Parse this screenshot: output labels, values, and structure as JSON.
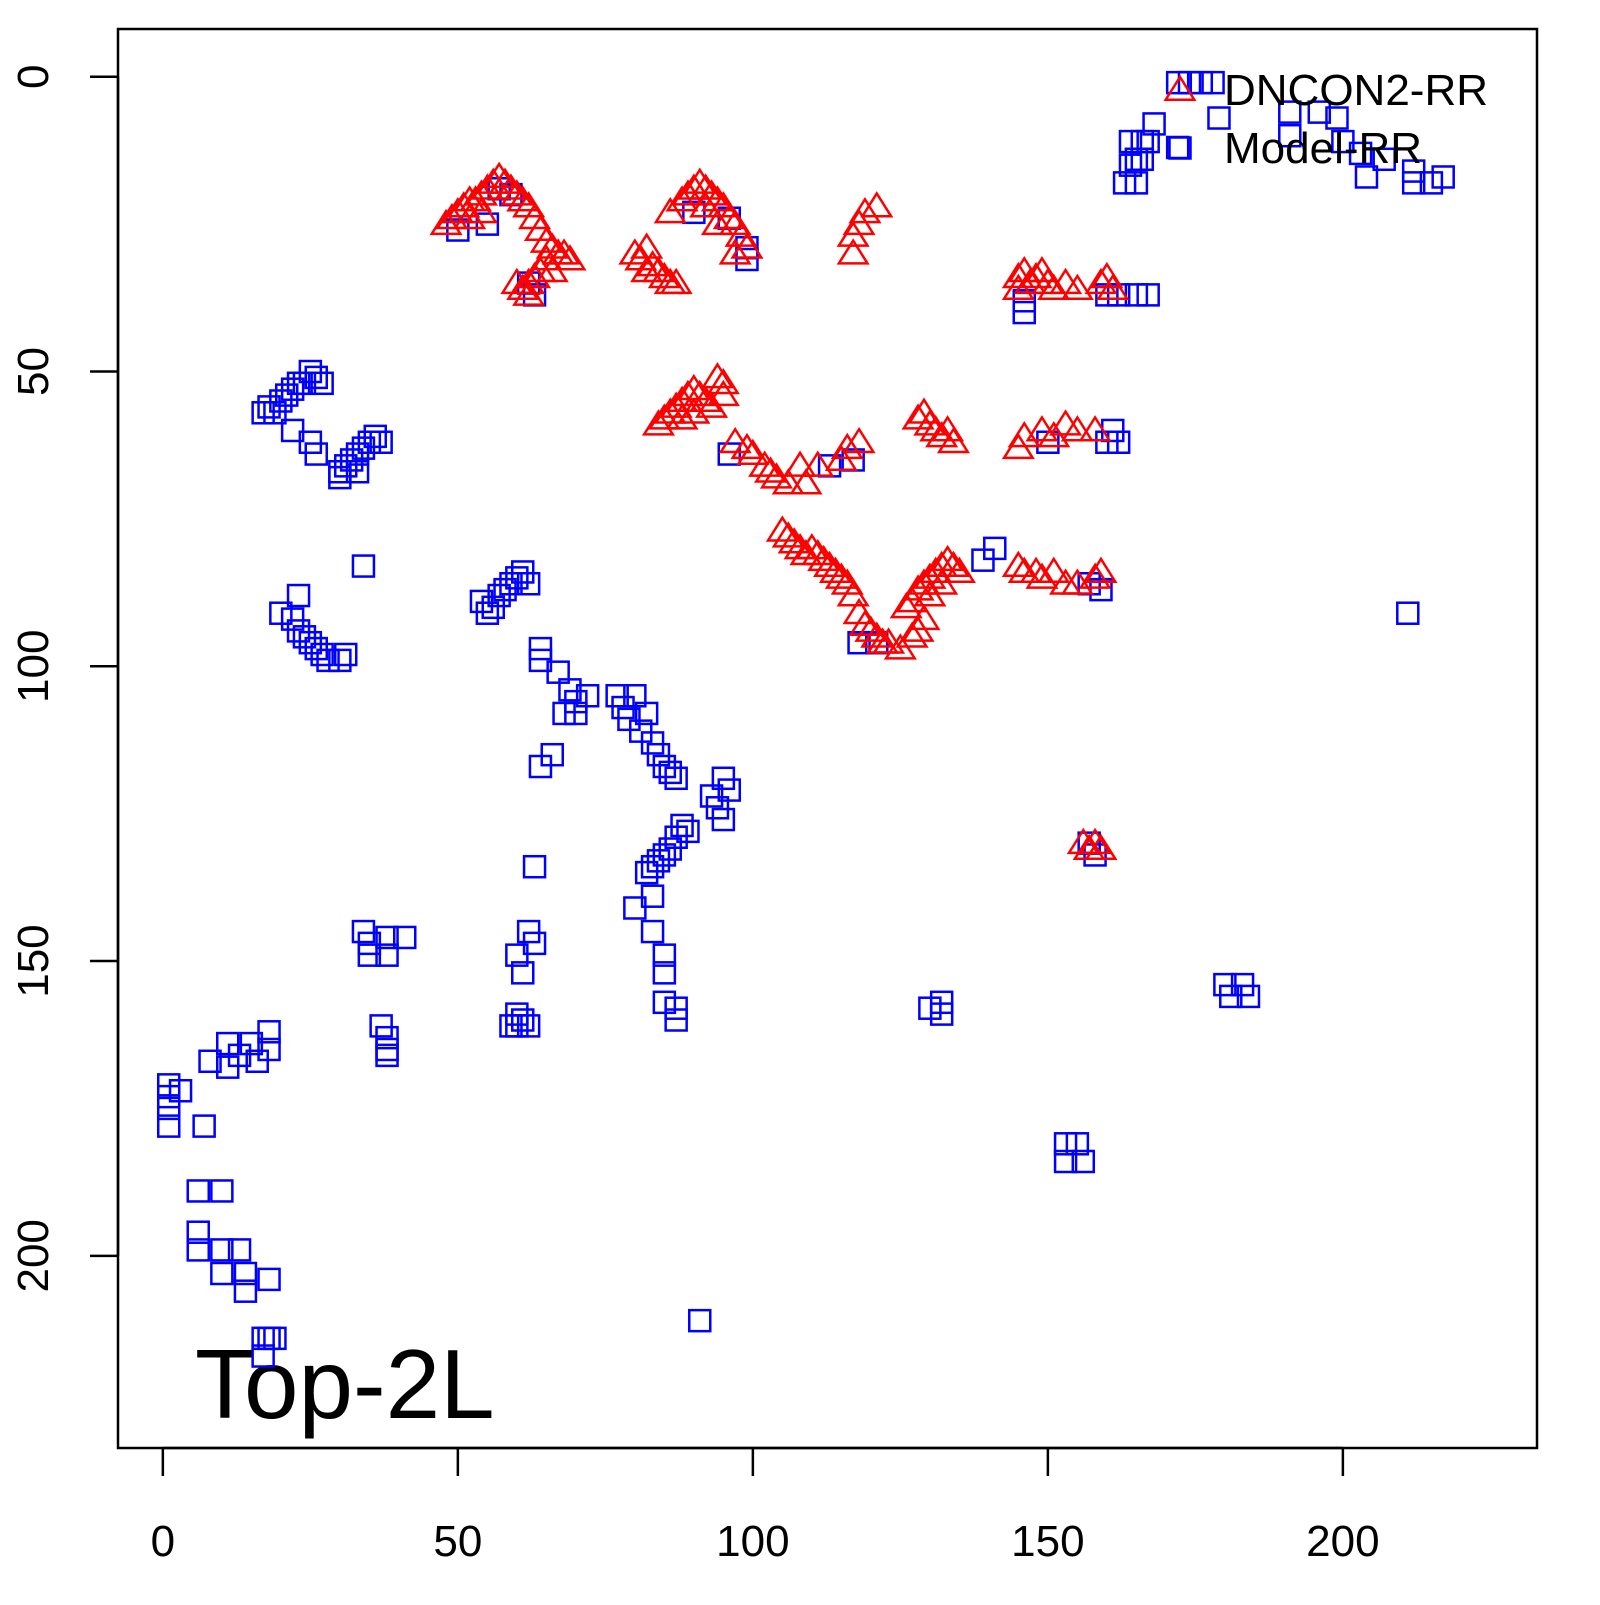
{
  "chart_data": {
    "type": "scatter",
    "annotation": "Top-2L",
    "legend": "topright",
    "xlim": [
      -7.6,
      232.9
    ],
    "xticks": [
      0,
      50,
      100,
      150,
      200
    ],
    "ylim": [
      232.6,
      -8.1
    ],
    "yticks": [
      0,
      50,
      100,
      150,
      200
    ],
    "series": [
      {
        "name": "DNCON2-RR",
        "color": "#ff0000",
        "marker": "triangle",
        "x": [
          48,
          49,
          50,
          51,
          52,
          53,
          54,
          55,
          56,
          57,
          58,
          59,
          60,
          61,
          62,
          63,
          64,
          65,
          66,
          67,
          68,
          69,
          64,
          63,
          62,
          61,
          60,
          62,
          65,
          66,
          52,
          54,
          80,
          81,
          82,
          83,
          84,
          85,
          86,
          87,
          82,
          86,
          88,
          89,
          90,
          91,
          92,
          93,
          94,
          95,
          96,
          97,
          98,
          99,
          97,
          92,
          94,
          117,
          118,
          119,
          121,
          117,
          145,
          146,
          147,
          148,
          149,
          150,
          151,
          153,
          155,
          159,
          160,
          161,
          145,
          84,
          85,
          86,
          87,
          88,
          89,
          90,
          91,
          92,
          93,
          94,
          95,
          95,
          88,
          90,
          97,
          99,
          100,
          102,
          103,
          104,
          106,
          108,
          109,
          111,
          116,
          118,
          115,
          105,
          106,
          107,
          108,
          109,
          110,
          111,
          112,
          113,
          114,
          115,
          116,
          117,
          118,
          119,
          120,
          121,
          122,
          123,
          125,
          127,
          128,
          129,
          127,
          128,
          129,
          130,
          131,
          132,
          133,
          134,
          135,
          126,
          130,
          132,
          128,
          129,
          130,
          131,
          132,
          134,
          133,
          145,
          146,
          149,
          151,
          153,
          155,
          158,
          145,
          146,
          148,
          149,
          151,
          153,
          155,
          158,
          159,
          156,
          158,
          159,
          157
        ],
        "y": [
          25,
          24,
          23,
          22,
          21,
          21,
          20,
          19,
          18,
          17,
          18,
          19,
          20,
          21,
          22,
          24,
          26,
          28,
          29,
          30,
          30,
          31,
          33,
          34,
          35,
          36,
          35,
          37,
          31,
          33,
          24,
          23,
          30,
          31,
          29,
          32,
          33,
          34,
          35,
          35,
          33,
          23,
          21,
          20,
          19,
          18,
          19,
          20,
          21,
          22,
          24,
          25,
          27,
          29,
          30,
          22,
          25,
          27,
          25,
          23,
          22,
          30,
          34,
          33,
          35,
          34,
          33,
          35,
          36,
          35,
          36,
          35,
          34,
          36,
          36,
          59,
          58,
          57,
          56,
          55,
          54,
          53,
          54,
          55,
          56,
          51,
          52,
          54,
          58,
          57,
          62,
          63,
          64,
          66,
          67,
          68,
          69,
          66,
          69,
          66,
          63,
          62,
          65,
          77,
          78,
          79,
          80,
          81,
          80,
          81,
          82,
          83,
          84,
          85,
          86,
          88,
          91,
          93,
          94,
          95,
          96,
          96,
          97,
          95,
          94,
          92,
          89,
          87,
          86,
          85,
          84,
          83,
          82,
          83,
          84,
          90,
          88,
          86,
          58,
          57,
          59,
          60,
          61,
          62,
          60,
          63,
          61,
          60,
          61,
          59,
          60,
          60,
          83,
          84,
          84,
          85,
          84,
          86,
          86,
          85,
          84,
          130,
          130,
          131,
          131
        ]
      },
      {
        "name": "Model-RR",
        "color": "#0000ff",
        "marker": "square",
        "x": [
          17,
          18,
          19,
          20,
          21,
          22,
          23,
          24,
          25,
          26,
          27,
          22,
          25,
          26,
          30,
          30,
          31,
          32,
          33,
          34,
          35,
          36,
          37,
          33,
          34,
          20,
          22,
          23,
          24,
          25,
          26,
          27,
          28,
          30,
          31,
          23,
          54,
          55,
          56,
          57,
          58,
          59,
          60,
          61,
          62,
          64,
          64,
          67,
          69,
          70,
          72,
          68,
          70,
          77,
          78,
          79,
          80,
          82,
          81,
          83,
          84,
          85,
          86,
          87,
          64,
          66,
          95,
          96,
          93,
          94,
          95,
          88,
          89,
          87,
          86,
          84,
          85,
          83,
          82,
          63,
          62,
          63,
          60,
          61,
          80,
          83,
          83,
          85,
          85,
          85,
          87,
          87,
          60,
          59,
          60,
          61,
          62,
          34,
          35,
          35,
          38,
          38,
          41,
          37,
          38,
          38,
          38,
          1,
          1,
          1,
          1,
          3,
          7,
          8,
          11,
          11,
          13,
          15,
          16,
          18,
          18,
          6,
          10,
          6,
          6,
          10,
          10,
          13,
          14,
          14,
          18,
          17,
          17,
          18,
          19,
          91,
          132,
          132,
          130,
          153,
          153,
          155,
          156,
          180,
          181,
          183,
          184,
          211,
          157,
          158,
          172,
          174,
          176,
          178,
          172,
          179,
          168,
          167,
          166,
          164,
          164,
          165,
          163,
          165,
          166,
          191,
          191,
          196,
          199,
          200,
          203,
          204,
          207,
          212,
          212,
          215,
          217,
          160,
          162,
          165,
          167,
          146,
          161,
          160,
          162,
          139,
          141,
          159,
          157,
          50,
          55,
          57,
          59,
          62,
          63,
          90,
          96,
          99,
          99,
          113,
          117,
          96,
          150,
          146,
          118,
          121
        ],
        "y": [
          57,
          56,
          57,
          55,
          54,
          53,
          52,
          52,
          50,
          51,
          52,
          60,
          62,
          64,
          67,
          68,
          66,
          65,
          64,
          63,
          62,
          61,
          62,
          67,
          83,
          91,
          92,
          94,
          95,
          96,
          97,
          98,
          99,
          99,
          98,
          88,
          89,
          91,
          90,
          88,
          87,
          86,
          85,
          84,
          86,
          97,
          99,
          101,
          104,
          106,
          105,
          108,
          108,
          105,
          107,
          109,
          105,
          108,
          111,
          113,
          115,
          117,
          118,
          119,
          117,
          115,
          119,
          121,
          122,
          124,
          126,
          127,
          128,
          129,
          131,
          133,
          132,
          134,
          135,
          134,
          145,
          147,
          149,
          152,
          141,
          139,
          145,
          149,
          152,
          157,
          158,
          160,
          159,
          161,
          161,
          160,
          161,
          145,
          147,
          149,
          146,
          149,
          146,
          161,
          163,
          165,
          166,
          171,
          173,
          175,
          178,
          172,
          178,
          167,
          164,
          168,
          166,
          164,
          167,
          162,
          165,
          189,
          189,
          196,
          199,
          199,
          203,
          199,
          203,
          206,
          204,
          214,
          217,
          214,
          214,
          211,
          157,
          159,
          158,
          181,
          184,
          181,
          184,
          154,
          156,
          154,
          156,
          91,
          130,
          132,
          1,
          1,
          1,
          1,
          12,
          7,
          8,
          11,
          11,
          11,
          15,
          14,
          18,
          18,
          14,
          6,
          10,
          6,
          7,
          11,
          13,
          17,
          14,
          16,
          18,
          18,
          17,
          37,
          37,
          37,
          37,
          40,
          60,
          62,
          62,
          82,
          80,
          87,
          86,
          26,
          25,
          19,
          20,
          35,
          37,
          23,
          24,
          29,
          31,
          66,
          65,
          64,
          62,
          38,
          96,
          96
        ]
      }
    ]
  }
}
